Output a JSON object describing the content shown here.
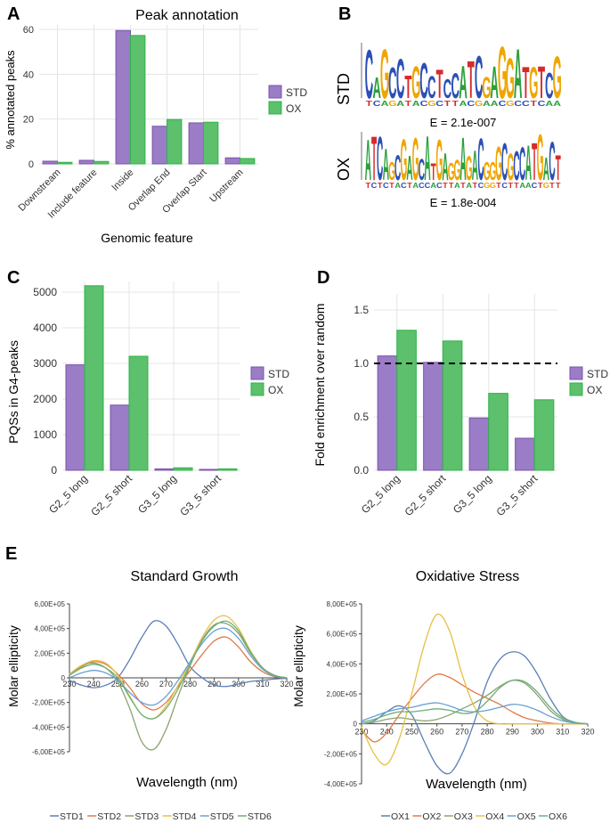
{
  "panel_labels": {
    "a": "A",
    "b": "B",
    "c": "C",
    "d": "D",
    "e": "E"
  },
  "colors": {
    "std": "#7a55a8",
    "ox": "#2fb34a",
    "std_light": "#9b7cc6",
    "ox_light": "#5cc06c"
  },
  "motifs": {
    "std_label": "STD",
    "ox_label": "OX",
    "std_evalue": "E = 2.1e-007",
    "ox_evalue": "E = 1.8e-004",
    "std_sequence": "CAGCCTGCCTCCATCGAGGATGTCG",
    "ox_sequence": "ATCAGCGAGCATGAGGAGACGGGCGCCATGACT"
  },
  "chart_data": [
    {
      "id": "A",
      "type": "bar",
      "title": "Peak annotation",
      "xlabel": "Genomic feature",
      "ylabel": "% annotated peaks",
      "ylim": [
        0,
        62
      ],
      "yticks": [
        "0",
        "20",
        "40",
        "60"
      ],
      "categories": [
        "Downstream",
        "Include feature",
        "Inside",
        "Overlap End",
        "Overlap Start",
        "Upstream"
      ],
      "series": [
        {
          "name": "STD",
          "values": [
            1.2,
            1.6,
            59.5,
            16.8,
            18.3,
            2.7
          ]
        },
        {
          "name": "OX",
          "values": [
            0.7,
            1.1,
            57.3,
            19.8,
            18.6,
            2.4
          ]
        }
      ],
      "legend": "right"
    },
    {
      "id": "C",
      "type": "bar",
      "xlabel": "",
      "ylabel": "PQSs in G4-peaks",
      "ylim": [
        0,
        5300
      ],
      "yticks": [
        "0",
        "1000",
        "2000",
        "3000",
        "4000",
        "5000"
      ],
      "categories": [
        "G2_5 long",
        "G2_5 short",
        "G3_5 long",
        "G3_5 short"
      ],
      "series": [
        {
          "name": "STD",
          "values": [
            2960,
            1830,
            40,
            25
          ]
        },
        {
          "name": "OX",
          "values": [
            5180,
            3200,
            70,
            40
          ]
        }
      ],
      "legend": "right"
    },
    {
      "id": "D",
      "type": "bar",
      "xlabel": "",
      "ylabel": "Fold enrichment over random",
      "ylim": [
        0,
        1.65
      ],
      "yticks": [
        "0.0",
        "0.5",
        "1.0",
        "1.5"
      ],
      "reference_line": 1.0,
      "categories": [
        "G2_5 long",
        "G2_5 short",
        "G3_5 long",
        "G3_5 short"
      ],
      "series": [
        {
          "name": "STD",
          "values": [
            1.07,
            1.01,
            0.49,
            0.3
          ]
        },
        {
          "name": "OX",
          "values": [
            1.31,
            1.21,
            0.72,
            0.66
          ]
        }
      ],
      "legend": "right"
    },
    {
      "id": "E1",
      "type": "line",
      "title": "Standard Growth",
      "xlabel": "Wavelength (nm)",
      "ylabel": "Molar ellipticity",
      "xlim": [
        230,
        320
      ],
      "ylim": [
        -600000,
        600000
      ],
      "xticks": [
        "230",
        "240",
        "250",
        "260",
        "270",
        "280",
        "290",
        "300",
        "310",
        "320"
      ],
      "yticks": [
        "-6,00E+05",
        "-4,00E+05",
        "-2,00E+05",
        "0",
        "2,00E+05",
        "4,00E+05",
        "6,00E+05"
      ],
      "x": [
        230,
        235,
        240,
        245,
        250,
        255,
        260,
        265,
        270,
        275,
        280,
        285,
        290,
        295,
        300,
        305,
        310,
        315,
        320
      ],
      "series": [
        {
          "name": "STD1",
          "color": "#5a7fb5",
          "values": [
            -20000,
            -60000,
            -80000,
            -60000,
            0,
            150000,
            330000,
            460000,
            420000,
            270000,
            90000,
            0,
            -60000,
            -70000,
            -50000,
            -30000,
            -20000,
            -10000,
            -5000
          ]
        },
        {
          "name": "STD2",
          "color": "#e07a4a",
          "values": [
            20000,
            90000,
            130000,
            110000,
            30000,
            -80000,
            -210000,
            -260000,
            -200000,
            -70000,
            60000,
            190000,
            300000,
            330000,
            250000,
            130000,
            50000,
            10000,
            0
          ]
        },
        {
          "name": "STD3",
          "color": "#8aa36e",
          "values": [
            30000,
            100000,
            120000,
            80000,
            -30000,
            -250000,
            -520000,
            -580000,
            -420000,
            -150000,
            100000,
            310000,
            430000,
            440000,
            360000,
            200000,
            80000,
            20000,
            0
          ]
        },
        {
          "name": "STD4",
          "color": "#e6c043",
          "values": [
            30000,
            100000,
            140000,
            120000,
            20000,
            -150000,
            -300000,
            -330000,
            -230000,
            -60000,
            130000,
            330000,
            470000,
            500000,
            400000,
            220000,
            80000,
            20000,
            0
          ]
        },
        {
          "name": "STD5",
          "color": "#6aa0d4",
          "values": [
            0,
            40000,
            60000,
            40000,
            -20000,
            -120000,
            -200000,
            -220000,
            -150000,
            -20000,
            130000,
            280000,
            380000,
            400000,
            320000,
            180000,
            70000,
            15000,
            0
          ]
        },
        {
          "name": "STD6",
          "color": "#6bb07a",
          "values": [
            20000,
            80000,
            110000,
            80000,
            0,
            -160000,
            -300000,
            -330000,
            -250000,
            -90000,
            110000,
            300000,
            420000,
            460000,
            380000,
            210000,
            80000,
            20000,
            0
          ]
        }
      ],
      "legend": "bottom"
    },
    {
      "id": "E2",
      "type": "line",
      "title": "Oxidative Stress",
      "xlabel": "Wavelength (nm)",
      "ylabel": "Molar ellipticity",
      "xlim": [
        230,
        320
      ],
      "ylim": [
        -400000,
        800000
      ],
      "xticks": [
        "230",
        "240",
        "250",
        "260",
        "270",
        "280",
        "290",
        "300",
        "310",
        "320"
      ],
      "yticks": [
        "-4,00E+05",
        "-2,00E+05",
        "0",
        "2,00E+05",
        "4,00E+05",
        "6,00E+05",
        "8,00E+05"
      ],
      "x": [
        230,
        235,
        240,
        245,
        250,
        255,
        260,
        265,
        270,
        275,
        280,
        285,
        290,
        295,
        300,
        305,
        310,
        315,
        320
      ],
      "series": [
        {
          "name": "OX1",
          "color": "#5a7fb5",
          "values": [
            0,
            20000,
            80000,
            120000,
            60000,
            -120000,
            -280000,
            -330000,
            -200000,
            20000,
            280000,
            430000,
            480000,
            450000,
            330000,
            170000,
            50000,
            10000,
            0
          ]
        },
        {
          "name": "OX2",
          "color": "#e07a4a",
          "values": [
            -40000,
            -120000,
            -60000,
            60000,
            170000,
            270000,
            330000,
            310000,
            260000,
            210000,
            170000,
            130000,
            80000,
            40000,
            20000,
            5000,
            0,
            0,
            0
          ]
        },
        {
          "name": "OX3",
          "color": "#8aa36e",
          "values": [
            0,
            10000,
            30000,
            40000,
            30000,
            20000,
            30000,
            60000,
            100000,
            140000,
            190000,
            250000,
            290000,
            270000,
            190000,
            90000,
            30000,
            5000,
            0
          ]
        },
        {
          "name": "OX4",
          "color": "#e6c043",
          "values": [
            -20000,
            -200000,
            -270000,
            -100000,
            200000,
            530000,
            730000,
            620000,
            330000,
            110000,
            20000,
            0,
            0,
            0,
            0,
            0,
            0,
            0,
            0
          ]
        },
        {
          "name": "OX5",
          "color": "#6aa0d4",
          "values": [
            20000,
            50000,
            80000,
            100000,
            110000,
            130000,
            140000,
            120000,
            90000,
            80000,
            90000,
            110000,
            130000,
            120000,
            90000,
            50000,
            20000,
            5000,
            0
          ]
        },
        {
          "name": "OX6",
          "color": "#6bb07a",
          "values": [
            10000,
            30000,
            60000,
            80000,
            80000,
            90000,
            100000,
            90000,
            70000,
            80000,
            150000,
            240000,
            290000,
            280000,
            210000,
            110000,
            40000,
            10000,
            0
          ]
        }
      ],
      "legend": "bottom"
    }
  ]
}
